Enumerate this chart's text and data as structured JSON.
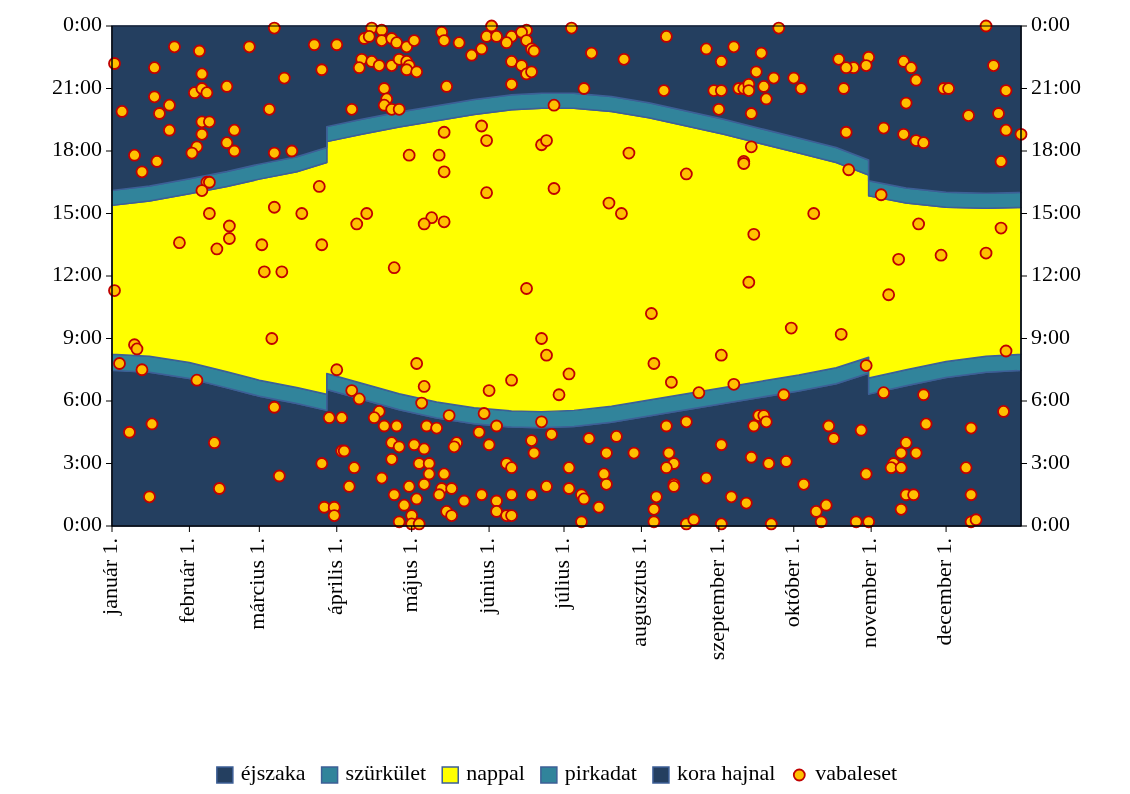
{
  "chart_data": {
    "type": "area",
    "stacked": true,
    "x": [
      "--01-01",
      "--01-16",
      "--02-01",
      "--02-16",
      "--03-01",
      "--03-16",
      "--03-28",
      "--03-28",
      "--04-11",
      "--04-26",
      "--05-11",
      "--05-26",
      "--06-10",
      "--06-22",
      "--07-05",
      "--07-20",
      "--08-04",
      "--08-19",
      "--09-03",
      "--09-18",
      "--10-03",
      "--10-18",
      "--10-31",
      "--10-31",
      "--11-15",
      "--12-01",
      "--12-17",
      "--12-31"
    ],
    "xlim": [
      "--01-01",
      "--12-31"
    ],
    "xticks": [
      {
        "value": "--01-01",
        "label": "január 1."
      },
      {
        "value": "--02-01",
        "label": "február 1."
      },
      {
        "value": "--03-01",
        "label": "március 1."
      },
      {
        "value": "--04-01",
        "label": "április 1."
      },
      {
        "value": "--05-01",
        "label": "május 1."
      },
      {
        "value": "--06-01",
        "label": "június 1."
      },
      {
        "value": "--07-01",
        "label": "július 1."
      },
      {
        "value": "--08-01",
        "label": "augusztus 1."
      },
      {
        "value": "--09-01",
        "label": "szeptember 1."
      },
      {
        "value": "--10-01",
        "label": "október 1."
      },
      {
        "value": "--11-01",
        "label": "november 1."
      },
      {
        "value": "--12-01",
        "label": "december 1."
      }
    ],
    "ylim": [
      0,
      24
    ],
    "yticks": [
      {
        "value": 0,
        "label": "0:00"
      },
      {
        "value": 3,
        "label": "3:00"
      },
      {
        "value": 6,
        "label": "6:00"
      },
      {
        "value": 9,
        "label": "9:00"
      },
      {
        "value": 12,
        "label": "12:00"
      },
      {
        "value": 15,
        "label": "15:00"
      },
      {
        "value": 18,
        "label": "18:00"
      },
      {
        "value": 21,
        "label": "21:00"
      },
      {
        "value": 24,
        "label": "0:00"
      }
    ],
    "y2lim": [
      0,
      24
    ],
    "y2ticks": [
      {
        "value": 0,
        "label": "0:00"
      },
      {
        "value": 3,
        "label": "3:00"
      },
      {
        "value": 6,
        "label": "6:00"
      },
      {
        "value": 9,
        "label": "9:00"
      },
      {
        "value": 12,
        "label": "12:00"
      },
      {
        "value": 15,
        "label": "15:00"
      },
      {
        "value": 18,
        "label": "18:00"
      },
      {
        "value": 21,
        "label": "21:00"
      },
      {
        "value": 24,
        "label": "0:00"
      }
    ],
    "legend": "bottom",
    "series": [
      {
        "name": "kora hajnal",
        "color": "#243f60",
        "values": [
          7.47,
          7.38,
          7.08,
          6.63,
          6.23,
          5.88,
          5.55,
          6.55,
          6.08,
          5.58,
          5.18,
          4.91,
          4.75,
          4.72,
          4.78,
          4.98,
          5.28,
          5.58,
          5.88,
          6.18,
          6.48,
          6.83,
          7.33,
          6.33,
          6.73,
          7.13,
          7.38,
          7.47
        ]
      },
      {
        "name": "pirkadat",
        "color": "#31849b",
        "values": [
          0.77,
          0.77,
          0.77,
          0.77,
          0.77,
          0.77,
          0.77,
          0.77,
          0.77,
          0.77,
          0.77,
          0.77,
          0.77,
          0.77,
          0.77,
          0.77,
          0.77,
          0.77,
          0.77,
          0.77,
          0.77,
          0.77,
          0.77,
          0.77,
          0.77,
          0.77,
          0.77,
          0.77
        ]
      },
      {
        "name": "nappal",
        "color": "#ffff00",
        "values": [
          7.15,
          7.45,
          8.1,
          8.9,
          9.65,
          10.35,
          11.13,
          11.13,
          11.95,
          12.8,
          13.5,
          14.07,
          14.46,
          14.56,
          14.5,
          14.15,
          13.55,
          12.85,
          12.15,
          11.4,
          10.65,
          9.85,
          8.75,
          8.75,
          8.0,
          7.4,
          7.1,
          7.05
        ]
      },
      {
        "name": "szürkület",
        "color": "#31849b",
        "values": [
          0.72,
          0.72,
          0.72,
          0.72,
          0.72,
          0.72,
          0.72,
          0.72,
          0.72,
          0.72,
          0.72,
          0.72,
          0.72,
          0.72,
          0.72,
          0.72,
          0.72,
          0.72,
          0.72,
          0.72,
          0.72,
          0.72,
          0.72,
          0.72,
          0.72,
          0.72,
          0.72,
          0.72
        ]
      },
      {
        "name": "éjszaka",
        "color": "#243f60",
        "values": [
          7.89,
          7.68,
          7.33,
          6.98,
          6.63,
          6.28,
          5.83,
          4.83,
          4.48,
          4.13,
          3.83,
          3.53,
          3.3,
          3.23,
          3.23,
          3.38,
          3.68,
          4.08,
          4.48,
          4.93,
          5.38,
          5.83,
          6.43,
          7.43,
          7.78,
          7.98,
          8.03,
          7.99
        ]
      },
      {
        "name": "vabaleset",
        "type": "scatter",
        "marker": "circle",
        "color": "#ffc000",
        "x": [
          "--03-07",
          "--01-26",
          "--02-05",
          "--02-25",
          "--03-23",
          "--04-01",
          "--01-02",
          "--01-18",
          "--02-06",
          "--03-11",
          "--03-26",
          "--02-16",
          "--01-18",
          "--02-03",
          "--02-06",
          "--02-08",
          "--01-24",
          "--01-20",
          "--01-05",
          "--03-05",
          "--04-07",
          "--01-24",
          "--02-06",
          "--02-09",
          "--02-19",
          "--02-06",
          "--02-16",
          "--02-04",
          "--02-02",
          "--02-19",
          "--01-10",
          "--01-19",
          "--01-13",
          "--03-07",
          "--03-14",
          "--04-30",
          "--02-08",
          "--02-09",
          "--02-06",
          "--03-25",
          "--03-07",
          "--02-09",
          "--03-18",
          "--04-09",
          "--04-13",
          "--02-17",
          "--02-17",
          "--01-28",
          "--02-12",
          "--03-02",
          "--03-26",
          "--03-03",
          "--03-10",
          "--04-24",
          "--01-02",
          "--03-06",
          "--01-10",
          "--01-11",
          "--01-04",
          "--01-13",
          "--02-04",
          "--04-01",
          "--05-03",
          "--04-07",
          "--04-10",
          "--03-07",
          "--03-29",
          "--04-03",
          "--04-18",
          "--04-16",
          "--04-20",
          "--04-25",
          "--01-08",
          "--01-17",
          "--02-11",
          "--04-23",
          "--04-26",
          "--05-02",
          "--04-03",
          "--04-04",
          "--04-23",
          "--03-26",
          "--04-08",
          "--05-04",
          "--03-09",
          "--04-19",
          "--04-30",
          "--04-06",
          "--02-13",
          "--01-16",
          "--04-24",
          "--05-03",
          "--04-28",
          "--03-27",
          "--03-31",
          "--03-31",
          "--05-01",
          "--04-26",
          "--05-01",
          "--05-04",
          "--04-15",
          "--04-19",
          "--04-12",
          "--04-14",
          "--04-19",
          "--04-23",
          "--04-25",
          "--04-29",
          "--05-02",
          "--04-11",
          "--04-10",
          "--04-15",
          "--04-18",
          "--04-23",
          "--04-26",
          "--04-29",
          "--04-30",
          "--04-29",
          "--05-03",
          "--04-20",
          "--04-21",
          "--04-20",
          "--04-23",
          "--04-26",
          "--05-13",
          "--05-14",
          "--05-20",
          "--06-02",
          "--05-31",
          "--06-04",
          "--06-10",
          "--06-08",
          "--05-29",
          "--05-25",
          "--06-16",
          "--06-14",
          "--06-16",
          "--06-18",
          "--06-19",
          "--07-04",
          "--07-12",
          "--07-25",
          "--08-11",
          "--08-27",
          "--06-10",
          "--06-14",
          "--06-16",
          "--06-18",
          "--05-15",
          "--06-10",
          "--07-09",
          "--08-10",
          "--06-27",
          "--05-29",
          "--05-14",
          "--05-31",
          "--06-22",
          "--06-24",
          "--05-12",
          "--07-27",
          "--05-14",
          "--08-19",
          "--05-31",
          "--06-27",
          "--07-19",
          "--07-24",
          "--05-09",
          "--05-06",
          "--05-14",
          "--06-16",
          "--08-05",
          "--06-22",
          "--06-24",
          "--08-06",
          "--07-03",
          "--06-10",
          "--06-01",
          "--05-06",
          "--06-29",
          "--08-13",
          "--08-24",
          "--05-05",
          "--05-16",
          "--05-30",
          "--05-07",
          "--05-11",
          "--06-04",
          "--06-22",
          "--06-26",
          "--05-28",
          "--08-11",
          "--08-19",
          "--05-06",
          "--05-19",
          "--05-18",
          "--06-01",
          "--06-18",
          "--06-19",
          "--07-11",
          "--07-22",
          "--07-18",
          "--07-29",
          "--08-12",
          "--08-14",
          "--08-11",
          "--05-08",
          "--05-08",
          "--05-14",
          "--06-08",
          "--06-10",
          "--07-03",
          "--07-17",
          "--07-18",
          "--05-06",
          "--05-13",
          "--05-17",
          "--05-12",
          "--05-22",
          "--05-29",
          "--06-04",
          "--06-10",
          "--06-18",
          "--06-24",
          "--07-03",
          "--07-08",
          "--07-09",
          "--07-15",
          "--08-07",
          "--08-06",
          "--08-14",
          "--08-14",
          "--08-27",
          "--05-15",
          "--05-17",
          "--06-04",
          "--06-08",
          "--06-10",
          "--07-08",
          "--08-06",
          "--08-19",
          "--08-22",
          "--09-25",
          "--12-17",
          "--09-07",
          "--09-18",
          "--09-02",
          "--10-19",
          "--10-31",
          "--10-30",
          "--10-25",
          "--10-22",
          "--11-14",
          "--11-17",
          "--12-20",
          "--09-16",
          "--09-23",
          "--10-01",
          "--08-30",
          "--09-02",
          "--09-09",
          "--09-11",
          "--09-13",
          "--09-13",
          "--09-19",
          "--09-20",
          "--10-04",
          "--10-21",
          "--11-19",
          "--11-30",
          "--12-02",
          "--12-25",
          "--09-01",
          "--09-14",
          "--11-15",
          "--12-10",
          "--12-22",
          "--12-25",
          "--12-31",
          "--10-22",
          "--11-06",
          "--11-14",
          "--11-19",
          "--11-22",
          "--12-23",
          "--09-14",
          "--09-11",
          "--09-11",
          "--10-23",
          "--11-05",
          "--10-09",
          "--09-15",
          "--11-20",
          "--12-23",
          "--11-12",
          "--11-29",
          "--12-17",
          "--09-13",
          "--11-08",
          "--09-30",
          "--10-20",
          "--09-02",
          "--12-25",
          "--10-30",
          "--09-07",
          "--09-27",
          "--11-06",
          "--11-22",
          "--12-24",
          "--09-17",
          "--09-19",
          "--09-20",
          "--09-15",
          "--10-15",
          "--10-17",
          "--10-28",
          "--11-23",
          "--12-11",
          "--09-02",
          "--09-14",
          "--09-21",
          "--09-28",
          "--11-15",
          "--11-13",
          "--11-19",
          "--11-10",
          "--11-09",
          "--11-13",
          "--12-09",
          "--10-30",
          "--10-05",
          "--09-06",
          "--09-12",
          "--11-15",
          "--11-18",
          "--12-11",
          "--10-10",
          "--10-14",
          "--11-13",
          "--09-02",
          "--09-22",
          "--10-12",
          "--10-26",
          "--10-31",
          "--12-11",
          "--12-13"
        ],
        "values": [
          23.9,
          23.0,
          22.8,
          23.0,
          23.1,
          23.1,
          22.2,
          22.0,
          21.7,
          21.5,
          21.9,
          21.1,
          20.6,
          20.8,
          21.0,
          20.8,
          20.2,
          19.8,
          19.9,
          20.0,
          20.0,
          19.0,
          19.4,
          19.4,
          19.0,
          18.8,
          18.4,
          18.2,
          17.9,
          18.0,
          17.8,
          17.5,
          17.0,
          17.9,
          18.0,
          17.8,
          16.5,
          16.5,
          16.1,
          16.3,
          15.3,
          15.0,
          15.0,
          14.5,
          15.0,
          14.4,
          13.8,
          13.6,
          13.3,
          13.5,
          13.5,
          12.2,
          12.2,
          12.4,
          11.3,
          9.0,
          8.7,
          8.5,
          7.8,
          7.5,
          7.0,
          7.5,
          7.8,
          6.5,
          6.1,
          5.7,
          5.2,
          5.2,
          5.5,
          5.2,
          4.8,
          4.8,
          4.5,
          4.9,
          4.0,
          4.0,
          3.8,
          3.9,
          3.6,
          3.6,
          3.2,
          3.0,
          2.8,
          3.0,
          2.4,
          2.3,
          1.9,
          1.9,
          1.8,
          1.4,
          1.5,
          1.3,
          1.0,
          0.9,
          0.9,
          0.5,
          0.5,
          0.2,
          0.1,
          0.1,
          23.9,
          23.8,
          23.4,
          23.5,
          23.3,
          23.4,
          23.2,
          23.0,
          23.3,
          22.4,
          22.0,
          22.3,
          22.1,
          22.1,
          22.4,
          22.3,
          22.1,
          21.9,
          21.8,
          21.0,
          20.5,
          20.2,
          20.0,
          20.0,
          23.7,
          23.3,
          23.2,
          24.0,
          23.5,
          23.5,
          23.5,
          23.2,
          22.9,
          22.6,
          23.8,
          23.7,
          23.3,
          22.9,
          22.8,
          23.9,
          22.7,
          22.4,
          23.5,
          22.9,
          22.3,
          22.1,
          21.7,
          21.8,
          21.1,
          21.2,
          21.0,
          20.9,
          20.2,
          19.2,
          18.9,
          18.5,
          18.3,
          18.5,
          17.8,
          17.9,
          17.0,
          16.9,
          16.0,
          16.2,
          15.5,
          15.0,
          14.8,
          14.5,
          14.6,
          11.4,
          10.2,
          9.0,
          8.2,
          7.8,
          7.3,
          7.0,
          6.5,
          6.7,
          6.3,
          6.9,
          6.4,
          5.9,
          5.3,
          5.4,
          4.8,
          4.7,
          4.8,
          5.0,
          4.4,
          4.5,
          4.8,
          5.0,
          3.7,
          4.0,
          3.8,
          3.9,
          4.1,
          3.5,
          4.2,
          4.3,
          3.5,
          3.5,
          3.5,
          3.0,
          2.8,
          3.0,
          2.5,
          2.5,
          3.0,
          2.8,
          2.8,
          2.5,
          2.0,
          2.0,
          1.8,
          1.8,
          1.5,
          1.2,
          1.5,
          1.2,
          1.5,
          1.5,
          1.9,
          1.8,
          1.5,
          1.3,
          0.9,
          1.4,
          0.8,
          2.0,
          1.9,
          2.3,
          0.7,
          0.5,
          0.7,
          0.5,
          0.5,
          0.2,
          0.2,
          0.1,
          0.3,
          23.9,
          24.0,
          23.0,
          22.7,
          22.3,
          22.4,
          22.5,
          22.1,
          22.0,
          22.0,
          22.3,
          22.0,
          22.1,
          21.8,
          21.5,
          21.5,
          20.9,
          20.9,
          21.0,
          21.0,
          21.2,
          20.9,
          21.1,
          20.5,
          21.0,
          21.0,
          21.4,
          21.0,
          21.0,
          20.9,
          20.0,
          19.8,
          20.3,
          19.7,
          19.8,
          19.0,
          18.8,
          18.9,
          19.1,
          18.8,
          18.5,
          18.4,
          17.5,
          18.2,
          17.5,
          17.4,
          17.1,
          15.9,
          15.0,
          14.0,
          14.5,
          14.3,
          12.8,
          13.0,
          13.1,
          11.7,
          11.1,
          9.5,
          9.2,
          8.2,
          8.4,
          7.7,
          6.8,
          6.3,
          6.4,
          6.3,
          5.5,
          5.3,
          5.3,
          5.0,
          4.8,
          4.8,
          4.2,
          4.6,
          4.9,
          4.7,
          3.9,
          3.3,
          3.0,
          3.1,
          4.0,
          3.5,
          3.5,
          3.0,
          2.8,
          2.8,
          2.8,
          2.5,
          2.0,
          1.4,
          1.1,
          1.5,
          1.5,
          1.5,
          0.7,
          1.0,
          0.8,
          0.1,
          0.1,
          0.2,
          0.2,
          0.2,
          0.2,
          0.3
        ]
      }
    ]
  }
}
